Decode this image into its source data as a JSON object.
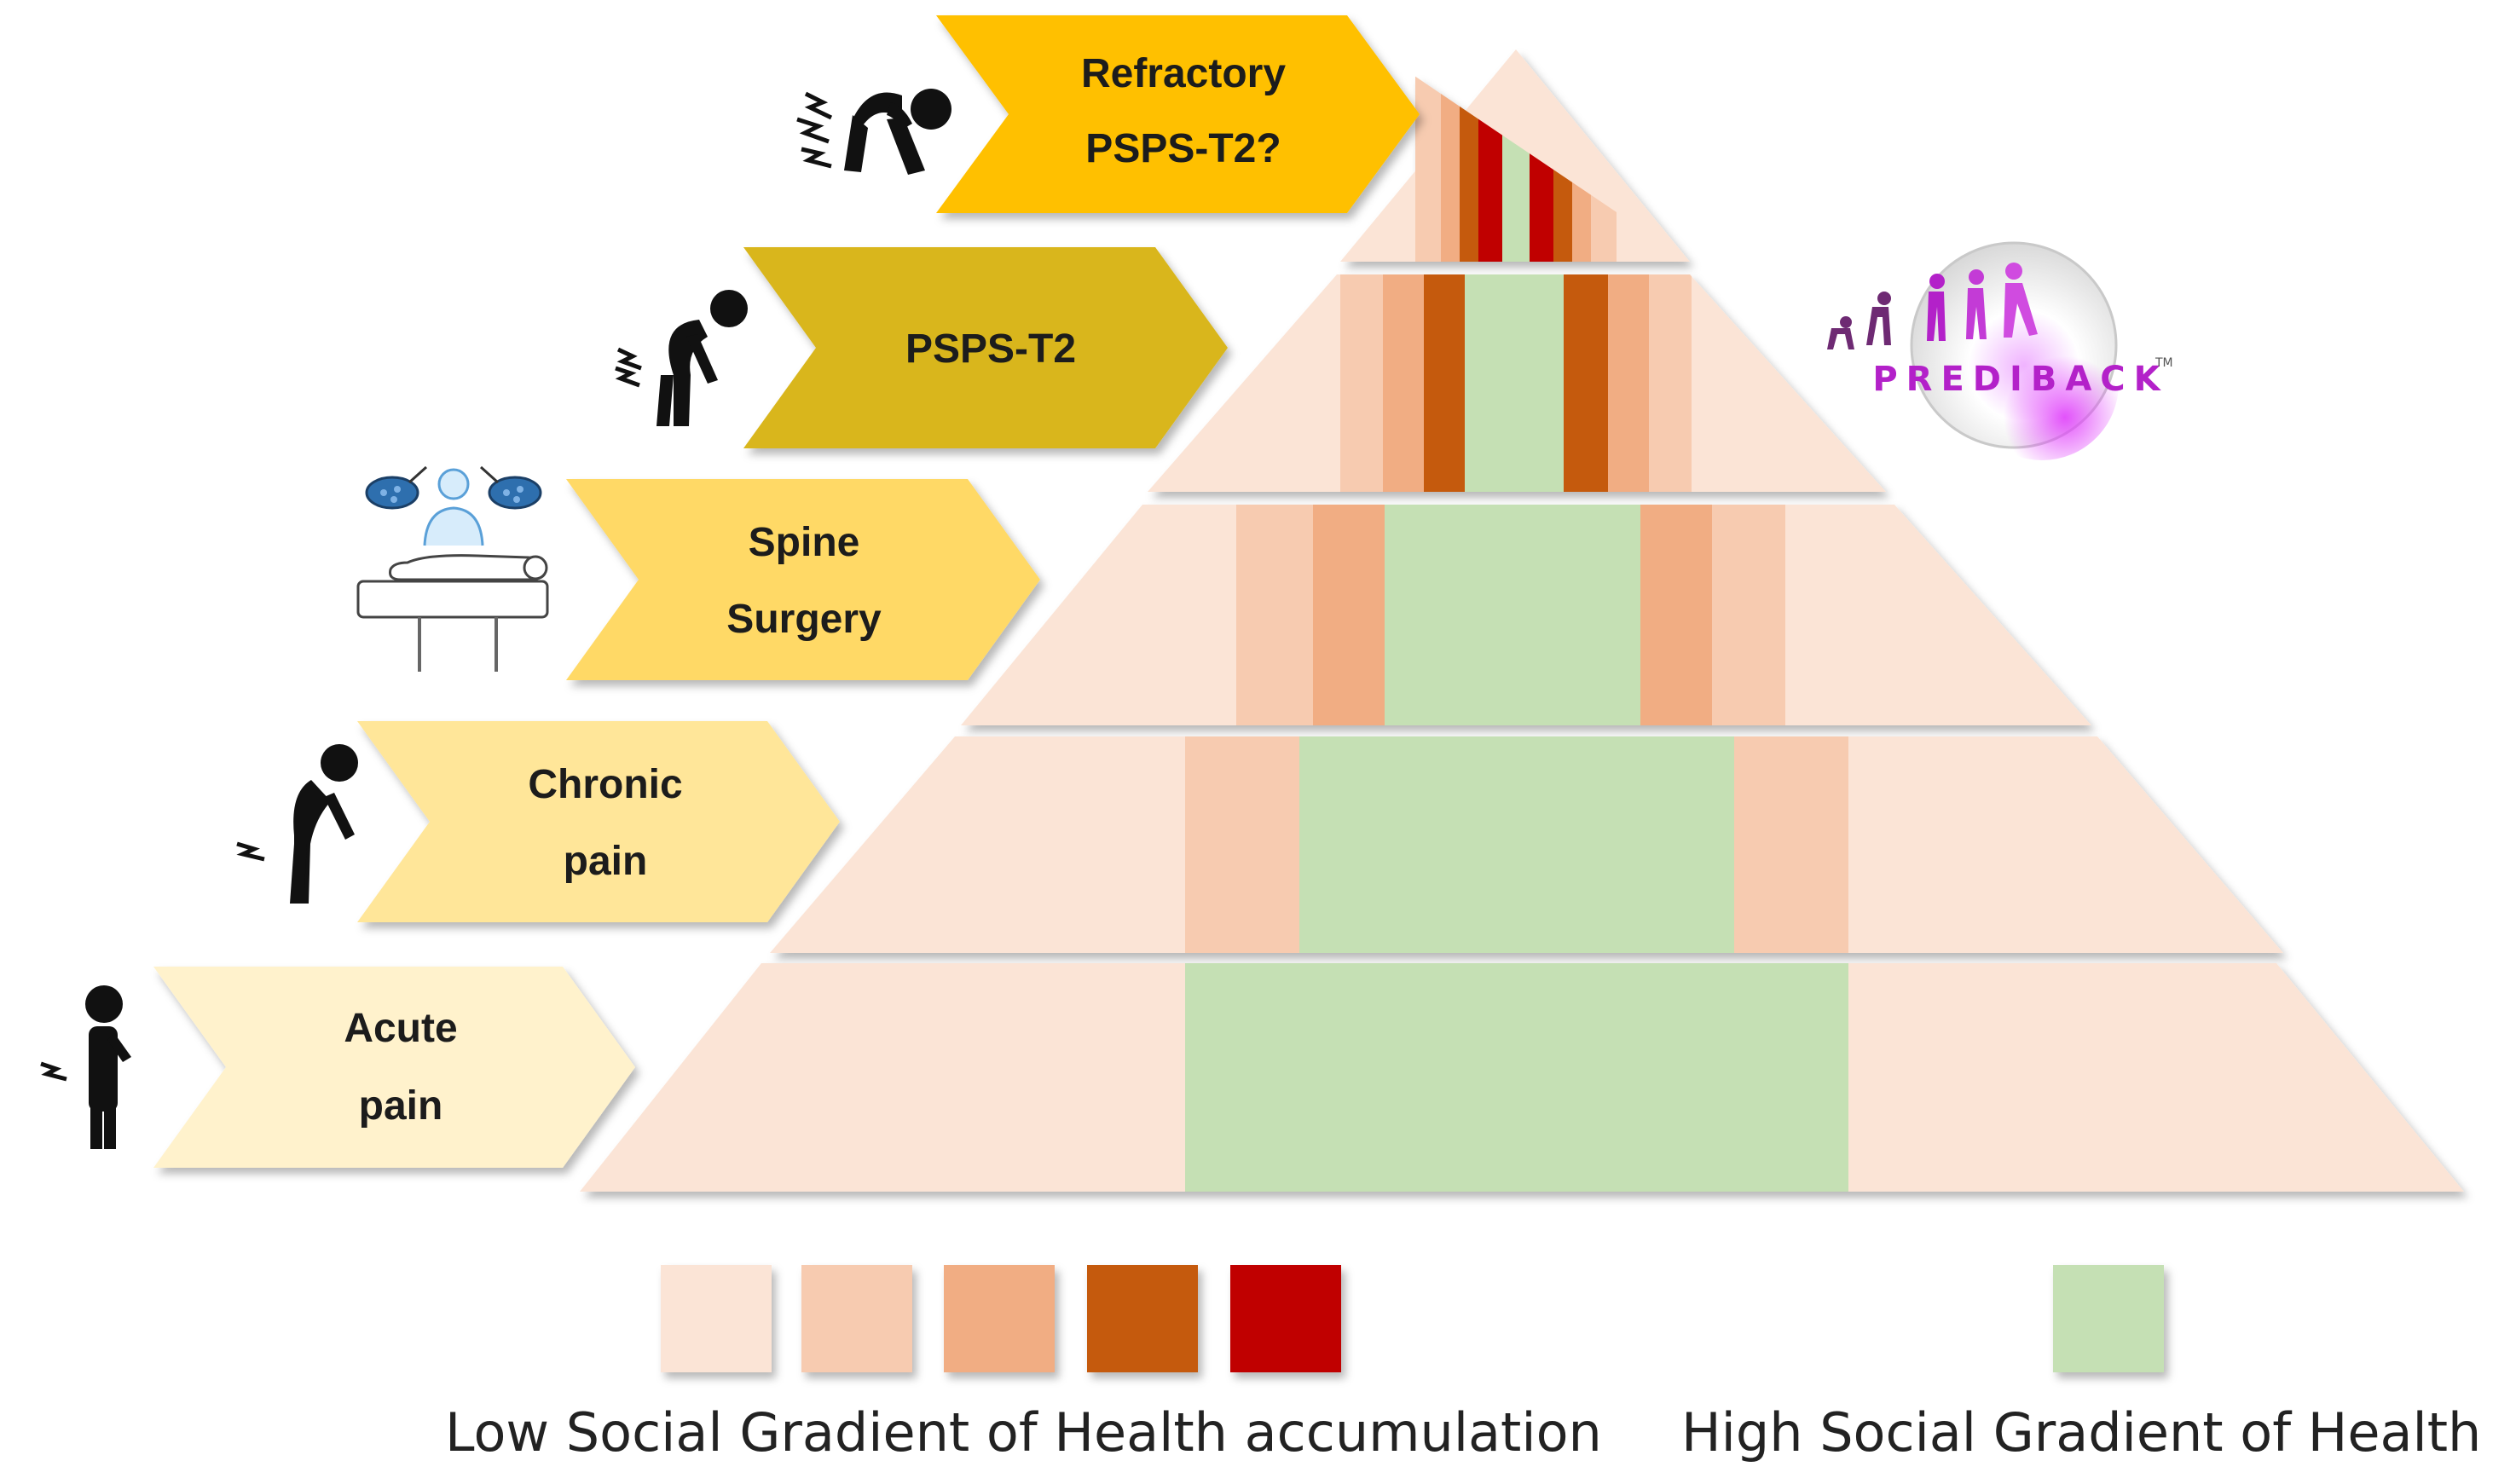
{
  "colors": {
    "tier1": "#fbe4d6",
    "tier2": "#f7cbb0",
    "tier3": "#f1ad83",
    "tier4": "#c55a11",
    "tier5": "#c00000",
    "green": "#c5e0b4",
    "arrow_refractory": "#ffc000",
    "arrow_psps": "#d9b61e",
    "arrow_spine": "#ffd966",
    "arrow_chronic": "#ffe699",
    "arrow_acute": "#fff2cc",
    "brand": "#b321c9"
  },
  "stages": [
    {
      "id": "acute",
      "lines": [
        "Acute",
        "pain"
      ],
      "icon": "standing-person-icon"
    },
    {
      "id": "chronic",
      "lines": [
        "Chronic",
        "pain"
      ],
      "icon": "bent-person-icon"
    },
    {
      "id": "spine",
      "lines": [
        "Spine",
        "Surgery"
      ],
      "icon": "surgery-table-icon"
    },
    {
      "id": "psps",
      "lines": [
        "PSPS-T2"
      ],
      "icon": "hunched-person-icon"
    },
    {
      "id": "refractory",
      "lines": [
        "Refractory",
        "PSPS-T2?"
      ],
      "icon": "crawling-person-icon"
    }
  ],
  "legend": {
    "low_label": "Low Social Gradient of Health accumulation",
    "high_label": "High Social Gradient of Health",
    "low_swatches": [
      "tier1",
      "tier2",
      "tier3",
      "tier4",
      "tier5"
    ],
    "high_swatch": "green"
  },
  "logo": {
    "name": "PREDIBACK",
    "trademark": "TM",
    "icon": "evolution-figures-icon"
  }
}
